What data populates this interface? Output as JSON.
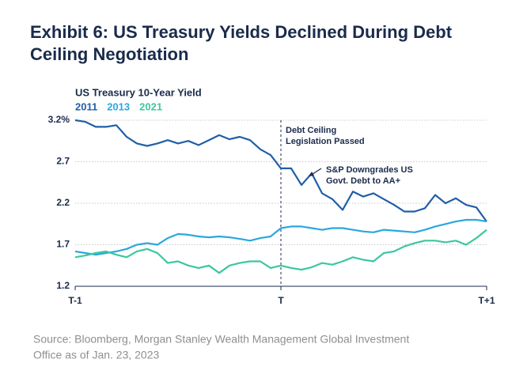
{
  "chart_data": {
    "type": "line",
    "title": [
      "Exhibit 6: US Treasury Yields Declined During Debt",
      "Ceiling Negotiation"
    ],
    "subtitle": "US Treasury 10-Year Yield",
    "source": [
      "Source: Bloomberg, Morgan Stanley Wealth Management Global Investment",
      "Office as of Jan. 23, 2023"
    ],
    "annotations": [
      {
        "lines": [
          "Debt Ceiling",
          "Legislation Passed"
        ]
      },
      {
        "lines": [
          "S&P Downgrades US",
          "Govt. Debt to AA+"
        ]
      }
    ],
    "x": [
      -1,
      -0.95,
      -0.9,
      -0.85,
      -0.8,
      -0.75,
      -0.7,
      -0.65,
      -0.6,
      -0.55,
      -0.5,
      -0.45,
      -0.4,
      -0.35,
      -0.3,
      -0.25,
      -0.2,
      -0.15,
      -0.1,
      -0.05,
      0,
      0.05,
      0.1,
      0.15,
      0.2,
      0.25,
      0.3,
      0.35,
      0.4,
      0.45,
      0.5,
      0.55,
      0.6,
      0.65,
      0.7,
      0.75,
      0.8,
      0.85,
      0.9,
      0.95,
      1
    ],
    "xlim": [
      -1,
      1
    ],
    "xticks": [
      {
        "value": -1,
        "label": "T-1"
      },
      {
        "value": 0,
        "label": "T"
      },
      {
        "value": 1,
        "label": "T+1"
      }
    ],
    "ylim": [
      1.2,
      3.2
    ],
    "yticks": [
      {
        "value": 3.2,
        "label": "3.2%"
      },
      2.7,
      2.2,
      1.7,
      1.2
    ],
    "grid": true,
    "series": [
      {
        "name": "2011",
        "color": "#1f5fa8",
        "values": [
          3.2,
          3.18,
          3.12,
          3.12,
          3.14,
          3.0,
          2.92,
          2.89,
          2.92,
          2.96,
          2.92,
          2.95,
          2.9,
          2.96,
          3.02,
          2.97,
          3.0,
          2.96,
          2.85,
          2.78,
          2.62,
          2.62,
          2.42,
          2.56,
          2.32,
          2.25,
          2.12,
          2.34,
          2.28,
          2.32,
          2.25,
          2.18,
          2.1,
          2.1,
          2.14,
          2.3,
          2.2,
          2.26,
          2.18,
          2.15,
          1.98
        ]
      },
      {
        "name": "2013",
        "color": "#29a8e0",
        "values": [
          1.62,
          1.6,
          1.58,
          1.6,
          1.62,
          1.65,
          1.7,
          1.72,
          1.7,
          1.78,
          1.83,
          1.82,
          1.8,
          1.79,
          1.8,
          1.79,
          1.77,
          1.75,
          1.78,
          1.8,
          1.9,
          1.92,
          1.92,
          1.9,
          1.88,
          1.9,
          1.9,
          1.88,
          1.86,
          1.85,
          1.88,
          1.87,
          1.86,
          1.85,
          1.88,
          1.92,
          1.95,
          1.98,
          2.0,
          2.0,
          1.98
        ]
      },
      {
        "name": "2021",
        "color": "#3cc7a0",
        "values": [
          1.55,
          1.57,
          1.6,
          1.62,
          1.58,
          1.55,
          1.62,
          1.65,
          1.6,
          1.48,
          1.5,
          1.45,
          1.42,
          1.45,
          1.36,
          1.45,
          1.48,
          1.5,
          1.5,
          1.42,
          1.45,
          1.42,
          1.4,
          1.43,
          1.48,
          1.46,
          1.5,
          1.55,
          1.52,
          1.5,
          1.6,
          1.62,
          1.68,
          1.72,
          1.75,
          1.75,
          1.73,
          1.75,
          1.7,
          1.78,
          1.88
        ]
      }
    ]
  }
}
